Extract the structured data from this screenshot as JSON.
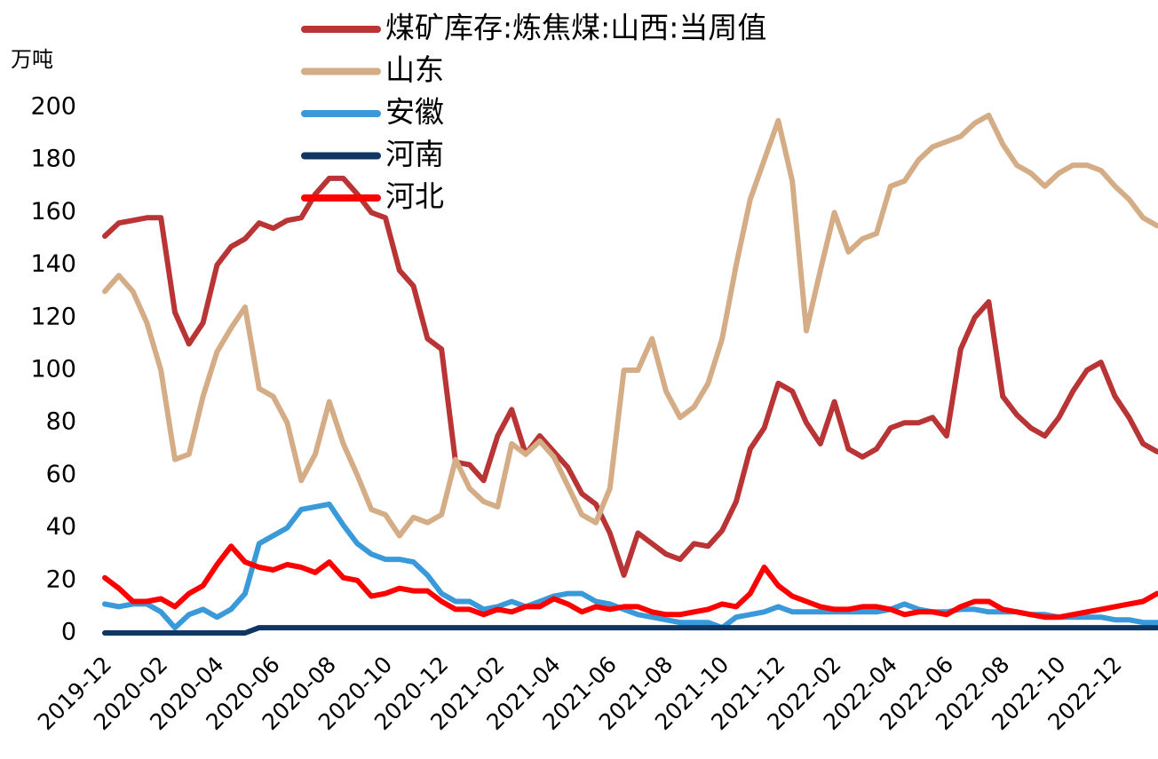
{
  "chart_data": {
    "type": "line",
    "y_unit": "万吨",
    "x": [
      "2019-12",
      "2019-12",
      "2020-01",
      "2020-01",
      "2020-02",
      "2020-02",
      "2020-03",
      "2020-03",
      "2020-04",
      "2020-04",
      "2020-05",
      "2020-05",
      "2020-06",
      "2020-06",
      "2020-07",
      "2020-07",
      "2020-08",
      "2020-08",
      "2020-09",
      "2020-09",
      "2020-10",
      "2020-10",
      "2020-11",
      "2020-11",
      "2020-12",
      "2020-12",
      "2021-01",
      "2021-01",
      "2021-02",
      "2021-02",
      "2021-03",
      "2021-03",
      "2021-04",
      "2021-04",
      "2021-05",
      "2021-05",
      "2021-06",
      "2021-06",
      "2021-07",
      "2021-07",
      "2021-08",
      "2021-08",
      "2021-09",
      "2021-09",
      "2021-10",
      "2021-10",
      "2021-11",
      "2021-11",
      "2021-12",
      "2021-12",
      "2022-01",
      "2022-01",
      "2022-02",
      "2022-02",
      "2022-03",
      "2022-03",
      "2022-04",
      "2022-04",
      "2022-05",
      "2022-05",
      "2022-06",
      "2022-06",
      "2022-07",
      "2022-07",
      "2022-08",
      "2022-08",
      "2022-09",
      "2022-09",
      "2022-10",
      "2022-10",
      "2022-11",
      "2022-11",
      "2022-12",
      "2022-12",
      "2023-01",
      "2023-01"
    ],
    "xticks": [
      "2019-12",
      "2020-02",
      "2020-04",
      "2020-06",
      "2020-08",
      "2020-10",
      "2020-12",
      "2021-02",
      "2021-04",
      "2021-06",
      "2021-08",
      "2021-10",
      "2021-12",
      "2022-02",
      "2022-04",
      "2022-06",
      "2022-08",
      "2022-10",
      "2022-12"
    ],
    "ylim": [
      0,
      200
    ],
    "yticks": [
      0,
      20,
      40,
      60,
      80,
      100,
      120,
      140,
      160,
      180,
      200
    ],
    "grid": false,
    "series": [
      {
        "name": "煤矿库存:炼焦煤:山西:当周值",
        "color": "#b93434",
        "values": [
          151,
          156,
          157,
          158,
          158,
          122,
          110,
          118,
          140,
          147,
          150,
          156,
          154,
          157,
          158,
          167,
          173,
          173,
          167,
          160,
          158,
          138,
          132,
          112,
          108,
          65,
          64,
          58,
          75,
          85,
          68,
          75,
          69,
          63,
          53,
          49,
          38,
          22,
          38,
          34,
          30,
          28,
          34,
          33,
          39,
          50,
          70,
          78,
          95,
          92,
          80,
          72,
          88,
          70,
          67,
          70,
          78,
          80,
          80,
          82,
          75,
          108,
          120,
          126,
          90,
          83,
          78,
          75,
          82,
          92,
          100,
          103,
          90,
          82,
          72,
          69
        ]
      },
      {
        "name": "山东",
        "color": "#d4ad87",
        "values": [
          130,
          136,
          130,
          118,
          100,
          66,
          68,
          90,
          107,
          116,
          124,
          93,
          90,
          80,
          58,
          68,
          88,
          72,
          60,
          47,
          45,
          37,
          44,
          42,
          45,
          66,
          55,
          50,
          48,
          72,
          68,
          73,
          67,
          56,
          45,
          42,
          55,
          100,
          100,
          112,
          92,
          82,
          86,
          95,
          112,
          140,
          165,
          180,
          195,
          172,
          115,
          138,
          160,
          145,
          150,
          152,
          170,
          172,
          180,
          185,
          187,
          189,
          194,
          197,
          186,
          178,
          175,
          170,
          175,
          178,
          178,
          176,
          170,
          165,
          158,
          155
        ]
      },
      {
        "name": "安徽",
        "color": "#3a9ad9",
        "values": [
          11,
          10,
          11,
          11,
          8,
          2,
          7,
          9,
          6,
          9,
          15,
          34,
          37,
          40,
          47,
          48,
          49,
          41,
          34,
          30,
          28,
          28,
          27,
          22,
          15,
          12,
          12,
          9,
          10,
          12,
          10,
          12,
          14,
          15,
          15,
          12,
          11,
          9,
          7,
          6,
          5,
          4,
          4,
          4,
          2,
          6,
          7,
          8,
          10,
          8,
          8,
          8,
          8,
          8,
          8,
          8,
          9,
          11,
          9,
          8,
          8,
          9,
          9,
          8,
          8,
          8,
          7,
          7,
          6,
          6,
          6,
          6,
          5,
          5,
          4,
          4
        ]
      },
      {
        "name": "河南",
        "color": "#0f3563",
        "values": [
          0,
          0,
          0,
          0,
          0,
          0,
          0,
          0,
          0,
          0,
          0,
          2,
          2,
          2,
          2,
          2,
          2,
          2,
          2,
          2,
          2,
          2,
          2,
          2,
          2,
          2,
          2,
          2,
          2,
          2,
          2,
          2,
          2,
          2,
          2,
          2,
          2,
          2,
          2,
          2,
          2,
          2,
          2,
          2,
          2,
          2,
          2,
          2,
          2,
          2,
          2,
          2,
          2,
          2,
          2,
          2,
          2,
          2,
          2,
          2,
          2,
          2,
          2,
          2,
          2,
          2,
          2,
          2,
          2,
          2,
          2,
          2,
          2,
          2,
          2,
          2
        ]
      },
      {
        "name": "河北",
        "color": "#ff0000",
        "values": [
          21,
          17,
          12,
          12,
          13,
          10,
          15,
          18,
          26,
          33,
          27,
          25,
          24,
          26,
          25,
          23,
          27,
          21,
          20,
          14,
          15,
          17,
          16,
          16,
          12,
          9,
          9,
          7,
          9,
          8,
          10,
          10,
          13,
          11,
          8,
          10,
          9,
          10,
          10,
          8,
          7,
          7,
          8,
          9,
          11,
          10,
          15,
          25,
          18,
          14,
          12,
          10,
          9,
          9,
          10,
          10,
          9,
          7,
          8,
          8,
          7,
          10,
          12,
          12,
          9,
          8,
          7,
          6,
          6,
          7,
          8,
          9,
          10,
          11,
          12,
          15
        ]
      }
    ]
  }
}
